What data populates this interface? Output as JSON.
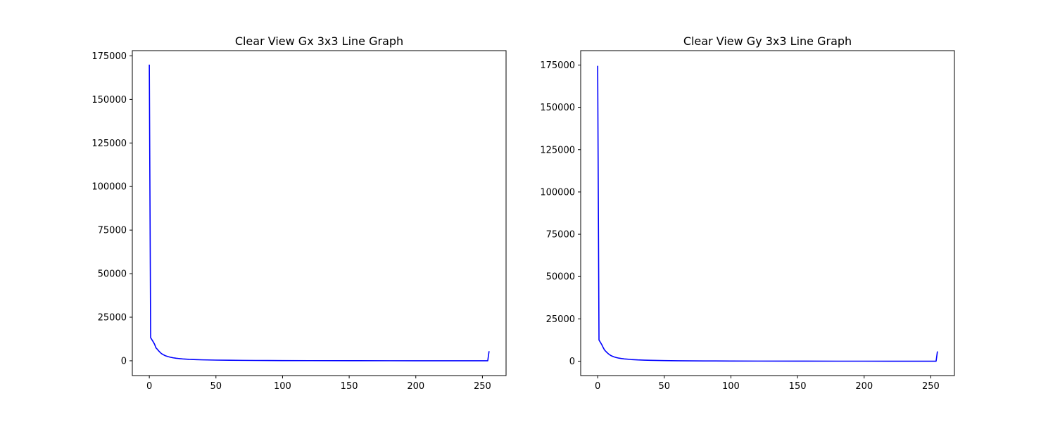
{
  "chart_data": [
    {
      "type": "line",
      "title": "Clear View Gx 3x3 Line Graph",
      "xlabel": "",
      "ylabel": "",
      "xlim": [
        -12.75,
        267.75
      ],
      "ylim": [
        -8500,
        178000
      ],
      "x_ticks": [
        0,
        50,
        100,
        150,
        200,
        250
      ],
      "y_ticks": [
        0,
        25000,
        50000,
        75000,
        100000,
        125000,
        150000,
        175000
      ],
      "grid": false,
      "color": "#0000ff",
      "series": [
        {
          "x": [
            0,
            1,
            2,
            3,
            4,
            5,
            6,
            7,
            8,
            9,
            10,
            12,
            14,
            16,
            18,
            20,
            25,
            30,
            35,
            40,
            50,
            60,
            70,
            80,
            100,
            120,
            150,
            180,
            200,
            220,
            240,
            250,
            254,
            255
          ],
          "values": [
            170000,
            13200,
            12000,
            10800,
            9400,
            7400,
            6600,
            5700,
            4900,
            4200,
            3700,
            2900,
            2400,
            2000,
            1700,
            1450,
            1050,
            800,
            650,
            530,
            380,
            290,
            230,
            180,
            120,
            80,
            45,
            25,
            18,
            12,
            8,
            5,
            5,
            5500
          ]
        }
      ]
    },
    {
      "type": "line",
      "title": "Clear View Gy 3x3 Line Graph",
      "xlabel": "",
      "ylabel": "",
      "xlim": [
        -12.75,
        267.75
      ],
      "ylim": [
        -8500,
        183500
      ],
      "x_ticks": [
        0,
        50,
        100,
        150,
        200,
        250
      ],
      "y_ticks": [
        0,
        25000,
        50000,
        75000,
        100000,
        125000,
        150000,
        175000
      ],
      "grid": false,
      "color": "#0000ff",
      "series": [
        {
          "x": [
            0,
            1,
            2,
            3,
            4,
            5,
            6,
            7,
            8,
            9,
            10,
            12,
            14,
            16,
            18,
            20,
            25,
            30,
            35,
            40,
            50,
            60,
            70,
            80,
            100,
            120,
            150,
            180,
            200,
            220,
            240,
            250,
            254,
            255
          ],
          "values": [
            174500,
            12500,
            11200,
            9900,
            8300,
            6800,
            5900,
            5100,
            4400,
            3800,
            3300,
            2600,
            2150,
            1800,
            1550,
            1350,
            1000,
            760,
            610,
            500,
            360,
            270,
            210,
            165,
            110,
            75,
            42,
            22,
            16,
            11,
            7,
            5,
            5,
            5800
          ]
        }
      ]
    }
  ]
}
